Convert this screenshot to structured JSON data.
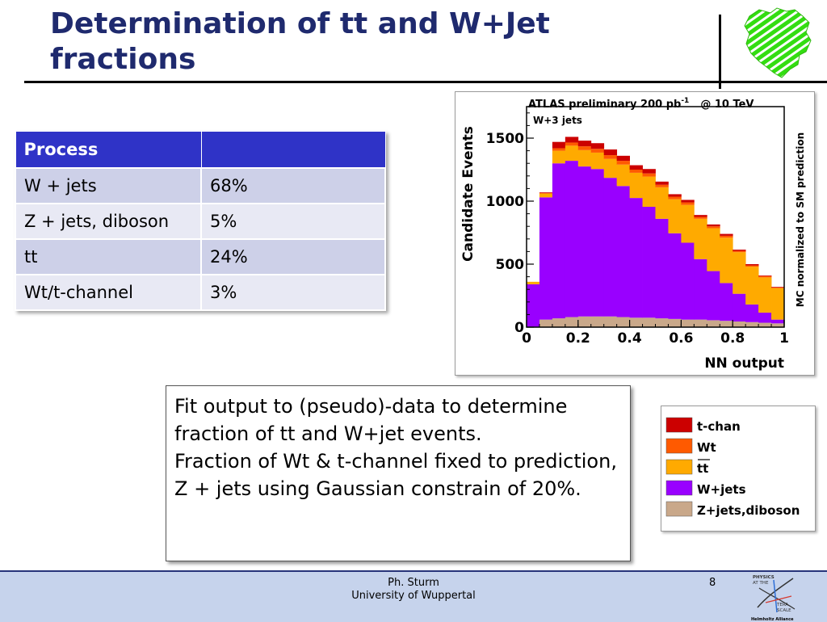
{
  "title": "Determination of tt and W+Jet fractions",
  "table": {
    "headers": [
      "Process",
      ""
    ],
    "rows": [
      [
        "W + jets",
        "68%"
      ],
      [
        "Z + jets, diboson",
        "5%"
      ],
      [
        "tt",
        "24%"
      ],
      [
        "Wt/t-channel",
        "3%"
      ]
    ]
  },
  "textbox": {
    "lines": [
      "Fit output to (pseudo)-data to determine fraction of tt and W+jet events.",
      "Fraction of Wt & t-channel fixed to prediction, Z + jets using Gaussian constrain of 20%."
    ]
  },
  "footer": {
    "author": "Ph. Sturm",
    "affiliation": "University of Wuppertal",
    "page": "8",
    "badge_lines": [
      "PHYSICS",
      "AT THE",
      "TERA",
      "SCALE",
      "Helmholtz Alliance"
    ]
  },
  "colors": {
    "title": "#1f2a6e",
    "table_header": "#2f33c7",
    "t_chan": "#cc0000",
    "wt": "#ff5a00",
    "ttbar": "#ffaa00",
    "wjets": "#9900ff",
    "zjets_diboson": "#c9a88a",
    "footer_bg": "#c6d3ec"
  },
  "chart_data": {
    "type": "area",
    "style": "stacked histogram",
    "header": "ATLAS preliminary 200 pb",
    "header_sup": "-1",
    "header_energy": "@ 10 TeV",
    "channel_label": "W+3 jets",
    "xlabel": "NN output",
    "ylabel": "Candidate Events",
    "right_label": "MC normalized to SM prediction",
    "xlim": [
      0,
      1
    ],
    "ylim": [
      0,
      1750
    ],
    "xticks": [
      "0",
      "0.2",
      "0.4",
      "0.6",
      "0.8",
      "1"
    ],
    "yticks": [
      "0",
      "500",
      "1000",
      "1500"
    ],
    "bin_edges": [
      0.0,
      0.05,
      0.1,
      0.15,
      0.2,
      0.25,
      0.3,
      0.35,
      0.4,
      0.45,
      0.5,
      0.55,
      0.6,
      0.65,
      0.7,
      0.75,
      0.8,
      0.85,
      0.9,
      0.95,
      1.0
    ],
    "series": [
      {
        "name": "Z+jets,diboson",
        "color": "#c9a88a",
        "values": [
          0,
          60,
          70,
          80,
          85,
          85,
          85,
          80,
          75,
          75,
          70,
          65,
          60,
          60,
          55,
          50,
          45,
          40,
          35,
          30
        ]
      },
      {
        "name": "W+jets",
        "color": "#9900ff",
        "values": [
          340,
          970,
          1230,
          1240,
          1190,
          1170,
          1100,
          1040,
          950,
          880,
          790,
          680,
          610,
          480,
          390,
          300,
          220,
          140,
          80,
          30
        ]
      },
      {
        "name": "tt",
        "color": "#ffaa00",
        "values": [
          20,
          30,
          100,
          120,
          130,
          130,
          150,
          170,
          200,
          240,
          250,
          270,
          300,
          320,
          340,
          360,
          330,
          300,
          280,
          250
        ]
      },
      {
        "name": "Wt",
        "color": "#ff5a00",
        "values": [
          0,
          5,
          20,
          25,
          30,
          30,
          30,
          30,
          25,
          25,
          20,
          20,
          20,
          15,
          15,
          15,
          10,
          10,
          10,
          5
        ]
      },
      {
        "name": "t-chan",
        "color": "#cc0000",
        "values": [
          0,
          5,
          50,
          45,
          45,
          45,
          45,
          40,
          35,
          35,
          25,
          20,
          20,
          15,
          15,
          15,
          10,
          10,
          5,
          5
        ]
      }
    ],
    "legend": [
      {
        "name": "t-chan",
        "color": "#cc0000"
      },
      {
        "name": "Wt",
        "color": "#ff5a00"
      },
      {
        "name": "tt",
        "color": "#ffaa00"
      },
      {
        "name": "W+jets",
        "color": "#9900ff"
      },
      {
        "name": "Z+jets,diboson",
        "color": "#c9a88a"
      }
    ]
  }
}
